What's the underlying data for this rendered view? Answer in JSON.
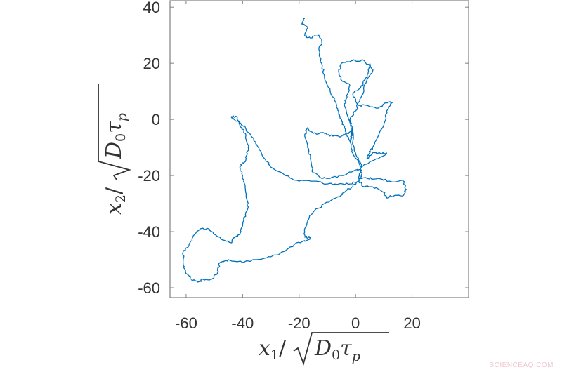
{
  "watermark": "SCIENCEAQ.COM",
  "chart_data": {
    "type": "line",
    "title": "",
    "xlabel": "x_1 / sqrt(D_0 tau_p)",
    "ylabel": "x_2 / sqrt(D_0 tau_p)",
    "xlabel_parts": {
      "var": "x",
      "sub": "1",
      "rad_var": "D",
      "rad_sub": "0",
      "tau": "τ",
      "tau_sub": "p"
    },
    "ylabel_parts": {
      "var": "x",
      "sub": "2",
      "rad_var": "D",
      "rad_sub": "0",
      "tau": "τ",
      "tau_sub": "p"
    },
    "xlim": [
      -65.7,
      40
    ],
    "ylim": [
      -63.5,
      42.3
    ],
    "xticks": [
      -60,
      -40,
      -20,
      0,
      20
    ],
    "yticks": [
      40,
      20,
      0,
      -20,
      -40,
      -60
    ],
    "xtick_labels": [
      "-60",
      "-40",
      "-20",
      "0",
      "20"
    ],
    "ytick_labels": [
      "40",
      "20",
      "0",
      "-20",
      "-40",
      "-60"
    ],
    "grid": false,
    "legend": null,
    "series": [
      {
        "name": "trajectory",
        "color": "#0072BD",
        "points": [
          [
            -18,
            36
          ],
          [
            -19,
            34
          ],
          [
            -17,
            33
          ],
          [
            -18,
            30
          ],
          [
            -16,
            29
          ],
          [
            -13,
            30
          ],
          [
            -12,
            28
          ],
          [
            -13,
            25
          ],
          [
            -12,
            20
          ],
          [
            -11,
            15
          ],
          [
            -9,
            10
          ],
          [
            -7,
            6
          ],
          [
            -6,
            3
          ],
          [
            -5,
            0
          ],
          [
            -4,
            -3
          ],
          [
            -3,
            -6
          ],
          [
            -2,
            -8
          ],
          [
            -1,
            -3
          ],
          [
            -4,
            5
          ],
          [
            -3,
            8
          ],
          [
            -2,
            12
          ],
          [
            -5,
            14
          ],
          [
            -6,
            17
          ],
          [
            -5,
            20
          ],
          [
            -1,
            21
          ],
          [
            3,
            21
          ],
          [
            5,
            19
          ],
          [
            4,
            15
          ],
          [
            2,
            12
          ],
          [
            -1,
            9
          ],
          [
            1,
            5
          ],
          [
            4,
            5
          ],
          [
            8,
            4
          ],
          [
            11,
            6
          ],
          [
            13,
            6
          ],
          [
            11,
            3
          ],
          [
            10,
            -2
          ],
          [
            8,
            -6
          ],
          [
            6,
            -10
          ],
          [
            5,
            -12
          ],
          [
            4,
            -14
          ],
          [
            6,
            -12
          ],
          [
            8,
            -12
          ],
          [
            11,
            -12
          ],
          [
            8,
            -14
          ],
          [
            4,
            -16
          ],
          [
            2,
            -17
          ],
          [
            -1,
            -12
          ],
          [
            -2,
            -8
          ],
          [
            -1,
            -4
          ],
          [
            -3,
            -5
          ],
          [
            -5,
            -6
          ],
          [
            -8,
            -6
          ],
          [
            -11,
            -5
          ],
          [
            -15,
            -5
          ],
          [
            -17,
            -3
          ],
          [
            -18,
            -6
          ],
          [
            -17,
            -10
          ],
          [
            -16,
            -14
          ],
          [
            -15,
            -19
          ],
          [
            -12,
            -21
          ],
          [
            -9,
            -21
          ],
          [
            -5,
            -20
          ],
          [
            0,
            -18
          ],
          [
            2,
            -18
          ],
          [
            1,
            -21
          ],
          [
            4,
            -21
          ],
          [
            8,
            -21
          ],
          [
            12,
            -22
          ],
          [
            17,
            -22
          ],
          [
            18,
            -25
          ],
          [
            17,
            -27
          ],
          [
            14,
            -27
          ],
          [
            11,
            -28
          ],
          [
            10,
            -26
          ],
          [
            6,
            -24
          ],
          [
            3,
            -24
          ],
          [
            1,
            -22
          ],
          [
            -2,
            -23
          ],
          [
            -6,
            -23
          ],
          [
            -10,
            -23
          ],
          [
            -15,
            -22
          ],
          [
            -20,
            -22
          ],
          [
            -25,
            -20
          ],
          [
            -30,
            -17
          ],
          [
            -33,
            -13
          ],
          [
            -35,
            -9
          ],
          [
            -37,
            -6
          ],
          [
            -39,
            -3
          ],
          [
            -41,
            -1
          ],
          [
            -43,
            0
          ],
          [
            -44,
            1
          ],
          [
            -42,
            1
          ],
          [
            -41,
            -2
          ],
          [
            -39,
            -5
          ],
          [
            -38,
            -10
          ],
          [
            -39,
            -15
          ],
          [
            -41,
            -17
          ],
          [
            -40,
            -20
          ],
          [
            -39,
            -25
          ],
          [
            -38,
            -30
          ],
          [
            -39,
            -34
          ],
          [
            -40,
            -38
          ],
          [
            -41,
            -41
          ],
          [
            -43,
            -42
          ],
          [
            -44,
            -44
          ],
          [
            -47,
            -43
          ],
          [
            -50,
            -41
          ],
          [
            -52,
            -39
          ],
          [
            -55,
            -39
          ],
          [
            -57,
            -41
          ],
          [
            -59,
            -45
          ],
          [
            -61,
            -47
          ],
          [
            -61,
            -52
          ],
          [
            -60,
            -55
          ],
          [
            -58,
            -57
          ],
          [
            -56,
            -58
          ],
          [
            -54,
            -57
          ],
          [
            -51,
            -57
          ],
          [
            -49,
            -55
          ],
          [
            -48,
            -51
          ],
          [
            -45,
            -50
          ],
          [
            -40,
            -51
          ],
          [
            -35,
            -50
          ],
          [
            -30,
            -49
          ],
          [
            -25,
            -47
          ],
          [
            -21,
            -44
          ],
          [
            -17,
            -43
          ],
          [
            -16,
            -42
          ],
          [
            -18,
            -42
          ],
          [
            -18,
            -39
          ],
          [
            -17,
            -36
          ],
          [
            -15,
            -33
          ],
          [
            -11,
            -30
          ],
          [
            -7,
            -28
          ],
          [
            -4,
            -26
          ],
          [
            -1,
            -24
          ],
          [
            1,
            -22
          ],
          [
            2,
            -20
          ],
          [
            2,
            -16
          ],
          [
            0,
            -12
          ],
          [
            -1,
            -8
          ],
          [
            -1,
            -4
          ],
          [
            -2,
            0
          ],
          [
            0,
            3
          ],
          [
            2,
            8
          ],
          [
            4,
            14
          ],
          [
            6,
            17
          ],
          [
            5,
            20
          ]
        ]
      }
    ]
  }
}
